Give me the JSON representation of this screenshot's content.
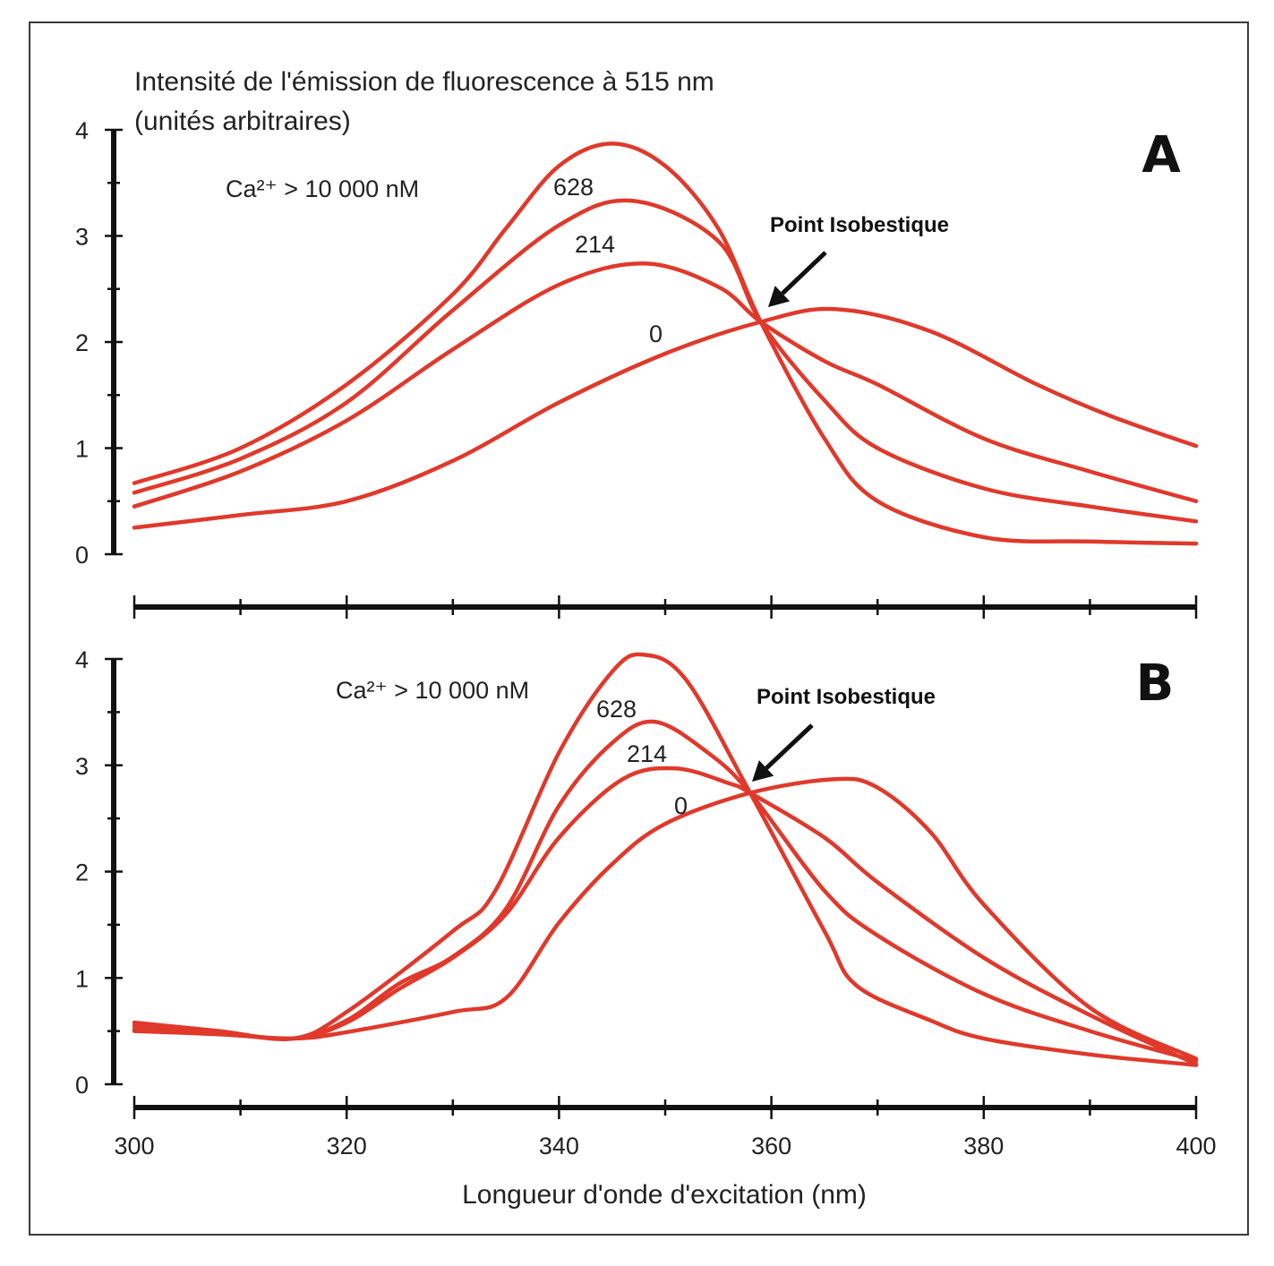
{
  "figure": {
    "y_title_line1": "Intensité de l'émission de fluorescence à 515 nm",
    "y_title_line2": "(unités arbitraires)",
    "x_title": "Longueur d'onde d'excitation (nm)",
    "curve_color": "#e0392b",
    "axis_color": "#111111"
  },
  "chart_data": [
    {
      "type": "line",
      "panel": "A",
      "title": "A",
      "xlabel": "Longueur d'onde d'excitation (nm)",
      "ylabel": "Intensité de l'émission de fluorescence à 515 nm (unités arbitraires)",
      "xlim": [
        300,
        400
      ],
      "ylim": [
        0,
        4
      ],
      "x_ticks": [
        300,
        320,
        340,
        360,
        380,
        400
      ],
      "x_minor_step": 10,
      "y_ticks": [
        0,
        1,
        2,
        3,
        4
      ],
      "y_minor_step": 0.5,
      "grid": false,
      "show_x_tick_labels": false,
      "annotation": {
        "text": "Point Isobestique",
        "x": 359,
        "y": 2.19
      },
      "series": [
        {
          "name": "Ca2+ > 10 000 nM",
          "label": "Ca²⁺ > 10 000 nM",
          "x": [
            300,
            310,
            320,
            330,
            335,
            340,
            345,
            350,
            355,
            359,
            365,
            370,
            380,
            390,
            400
          ],
          "values": [
            0.67,
            1.0,
            1.6,
            2.45,
            3.07,
            3.66,
            3.87,
            3.66,
            3.07,
            2.19,
            1.09,
            0.5,
            0.16,
            0.12,
            0.1
          ]
        },
        {
          "name": "628",
          "label": "628",
          "x": [
            300,
            310,
            320,
            330,
            340,
            347,
            355,
            359,
            365,
            370,
            380,
            390,
            400
          ],
          "values": [
            0.58,
            0.9,
            1.43,
            2.3,
            3.1,
            3.33,
            2.95,
            2.19,
            1.45,
            1.0,
            0.62,
            0.45,
            0.31
          ]
        },
        {
          "name": "214",
          "label": "214",
          "x": [
            300,
            310,
            320,
            330,
            340,
            348,
            355,
            359,
            365,
            370,
            380,
            390,
            400
          ],
          "values": [
            0.45,
            0.78,
            1.26,
            1.93,
            2.54,
            2.74,
            2.52,
            2.19,
            1.82,
            1.6,
            1.09,
            0.78,
            0.5
          ]
        },
        {
          "name": "0",
          "label": "0",
          "x": [
            300,
            310,
            320,
            330,
            340,
            350,
            359,
            366,
            375,
            385,
            392,
            400
          ],
          "values": [
            0.25,
            0.37,
            0.5,
            0.88,
            1.43,
            1.89,
            2.19,
            2.31,
            2.1,
            1.6,
            1.3,
            1.02
          ]
        }
      ]
    },
    {
      "type": "line",
      "panel": "B",
      "title": "B",
      "xlabel": "Longueur d'onde d'excitation (nm)",
      "ylabel": "Intensité de l'émission de fluorescence à 515 nm (unités arbitraires)",
      "xlim": [
        300,
        400
      ],
      "ylim": [
        0,
        4
      ],
      "x_ticks": [
        300,
        320,
        340,
        360,
        380,
        400
      ],
      "x_minor_step": 10,
      "y_ticks": [
        0,
        1,
        2,
        3,
        4
      ],
      "y_minor_step": 0.5,
      "grid": false,
      "show_x_tick_labels": true,
      "annotation": {
        "text": "Point Isobestique",
        "x": 358,
        "y": 2.74
      },
      "series": [
        {
          "name": "Ca2+ > 10 000 nM",
          "label": "Ca²⁺ > 10 000 nM",
          "x": [
            300,
            308,
            315,
            320,
            330,
            334,
            340,
            345,
            348,
            352,
            358,
            365,
            368,
            375,
            380,
            390,
            400
          ],
          "values": [
            0.58,
            0.5,
            0.43,
            0.68,
            1.44,
            1.82,
            3.12,
            3.88,
            4.04,
            3.8,
            2.74,
            1.44,
            0.93,
            0.6,
            0.43,
            0.28,
            0.18
          ]
        },
        {
          "name": "628",
          "label": "628",
          "x": [
            300,
            308,
            315,
            320,
            325,
            330,
            335,
            340,
            345,
            349,
            354,
            358,
            365,
            370,
            380,
            390,
            400
          ],
          "values": [
            0.55,
            0.49,
            0.43,
            0.6,
            0.95,
            1.2,
            1.65,
            2.62,
            3.21,
            3.41,
            3.12,
            2.74,
            1.82,
            1.4,
            0.85,
            0.5,
            0.22
          ]
        },
        {
          "name": "214",
          "label": "214",
          "x": [
            300,
            308,
            315,
            320,
            325,
            330,
            335,
            340,
            346,
            351,
            356,
            358,
            365,
            370,
            380,
            390,
            400
          ],
          "values": [
            0.52,
            0.48,
            0.43,
            0.58,
            0.9,
            1.19,
            1.6,
            2.32,
            2.87,
            2.97,
            2.83,
            2.74,
            2.32,
            1.9,
            1.19,
            0.65,
            0.19
          ]
        },
        {
          "name": "0",
          "label": "0",
          "x": [
            300,
            308,
            315,
            320,
            330,
            335,
            340,
            345,
            350,
            358,
            366,
            370,
            375,
            380,
            390,
            400
          ],
          "values": [
            0.5,
            0.47,
            0.43,
            0.49,
            0.68,
            0.81,
            1.52,
            2.07,
            2.45,
            2.74,
            2.87,
            2.79,
            2.37,
            1.69,
            0.72,
            0.24
          ]
        }
      ]
    }
  ]
}
